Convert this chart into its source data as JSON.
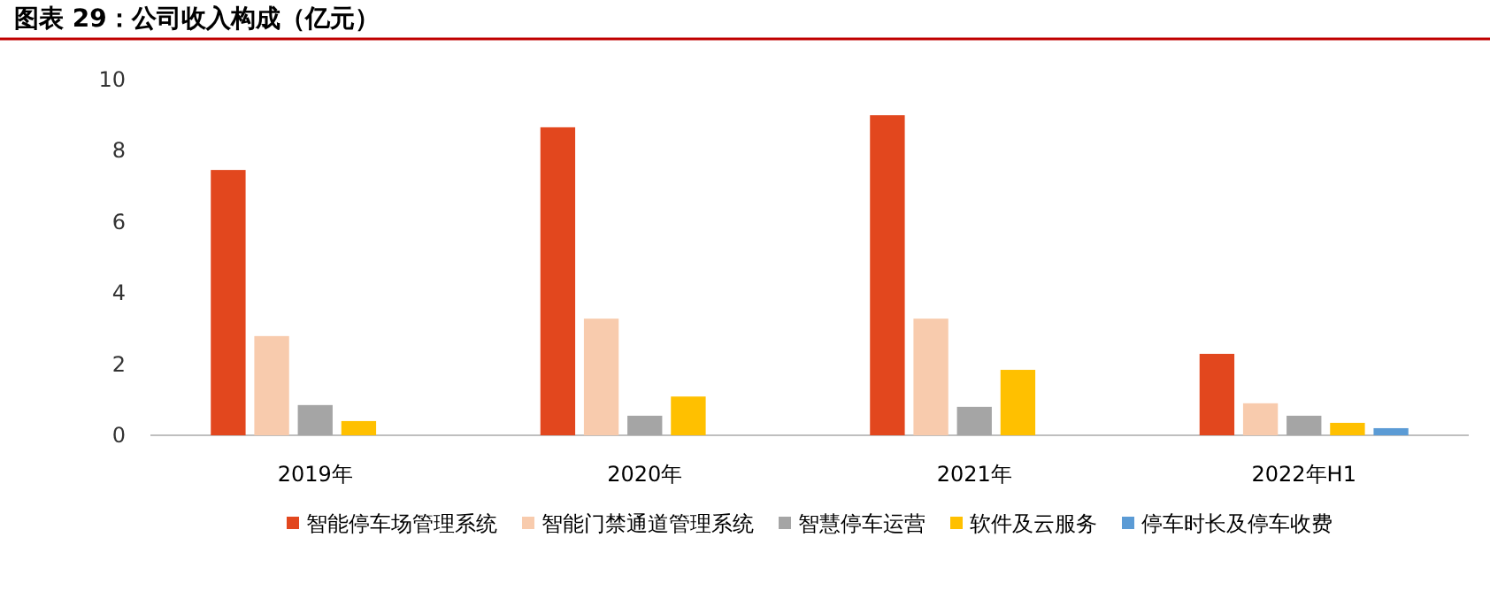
{
  "chart_data": {
    "type": "bar",
    "title": "图表 29：公司收入构成（亿元）",
    "categories": [
      "2019年",
      "2020年",
      "2021年",
      "2022年H1"
    ],
    "series": [
      {
        "name": "智能停车场管理系统",
        "color": "#e2471e",
        "values": [
          7.46,
          8.66,
          9.0,
          2.29
        ]
      },
      {
        "name": "智能门禁通道管理系统",
        "color": "#f8cbad",
        "values": [
          2.79,
          3.28,
          3.28,
          0.9
        ]
      },
      {
        "name": "智慧停车运营",
        "color": "#a5a5a5",
        "values": [
          0.85,
          0.55,
          0.8,
          0.55
        ]
      },
      {
        "name": "软件及云服务",
        "color": "#ffc000",
        "values": [
          0.4,
          1.09,
          1.84,
          0.35
        ]
      },
      {
        "name": "停车时长及停车收费",
        "color": "#5b9bd5",
        "values": [
          null,
          null,
          null,
          0.2
        ]
      }
    ],
    "ylim": [
      0,
      10
    ],
    "yticks": [
      0,
      2,
      4,
      6,
      8,
      10
    ],
    "legend": "bottom"
  }
}
